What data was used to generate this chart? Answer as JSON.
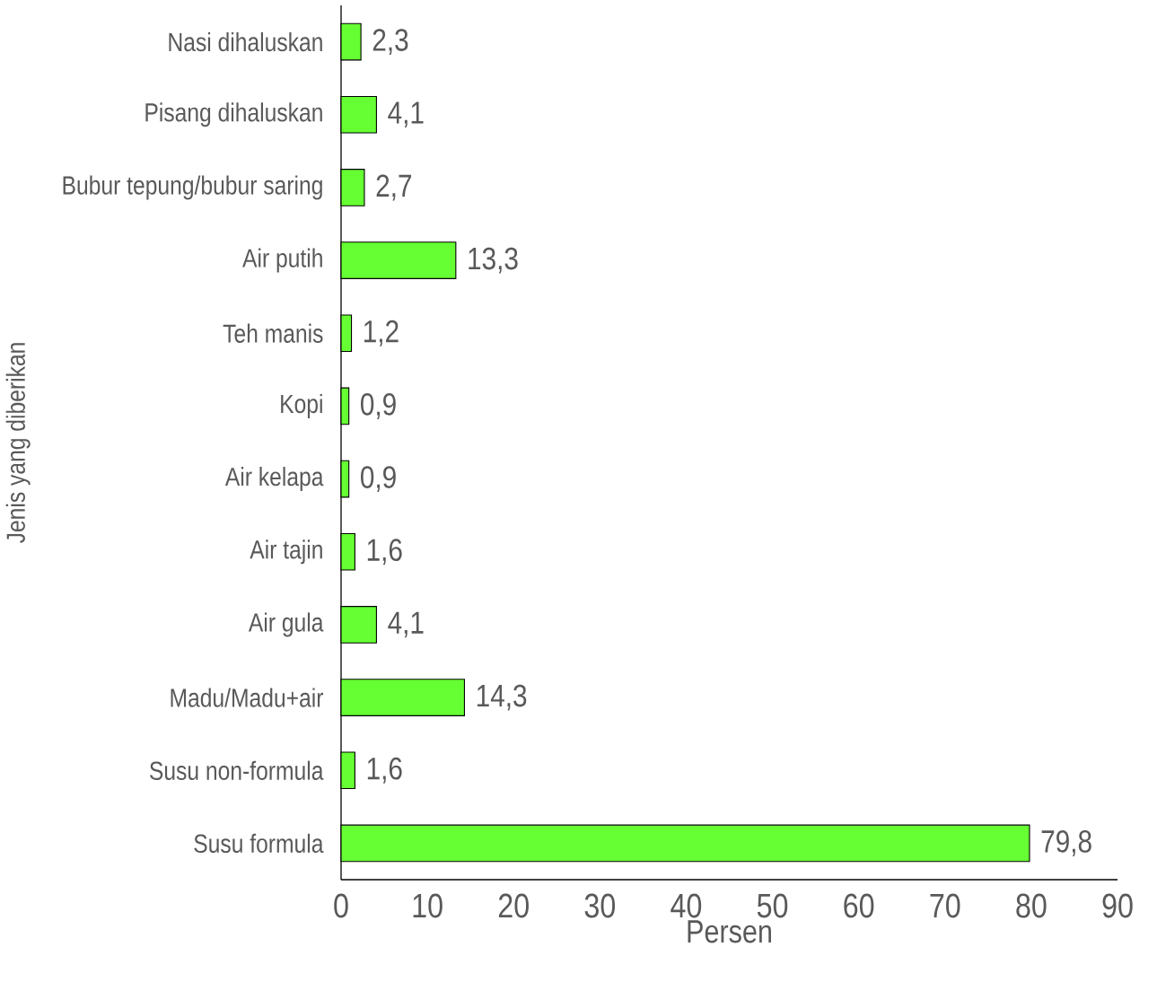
{
  "chart_data": {
    "type": "bar",
    "orientation": "horizontal",
    "xlabel": "Persen",
    "ylabel": "Jenis yang diberikan",
    "categories": [
      "Nasi dihaluskan",
      "Pisang dihaluskan",
      "Bubur tepung/bubur saring",
      "Air putih",
      "Teh manis",
      "Kopi",
      "Air kelapa",
      "Air tajin",
      "Air gula",
      "Madu/Madu+air",
      "Susu non-formula",
      "Susu formula"
    ],
    "values": [
      2.3,
      4.1,
      2.7,
      13.3,
      1.2,
      0.9,
      0.9,
      1.6,
      4.1,
      14.3,
      1.6,
      79.8
    ],
    "value_labels": [
      "2,3",
      "4,1",
      "2,7",
      "13,3",
      "1,2",
      "0,9",
      "0,9",
      "1,6",
      "4,1",
      "14,3",
      "1,6",
      "79,8"
    ],
    "color": "#66ff33",
    "xlim": [
      0,
      90
    ],
    "xticks": [
      0,
      10,
      20,
      30,
      40,
      50,
      60,
      70,
      80,
      90
    ]
  }
}
